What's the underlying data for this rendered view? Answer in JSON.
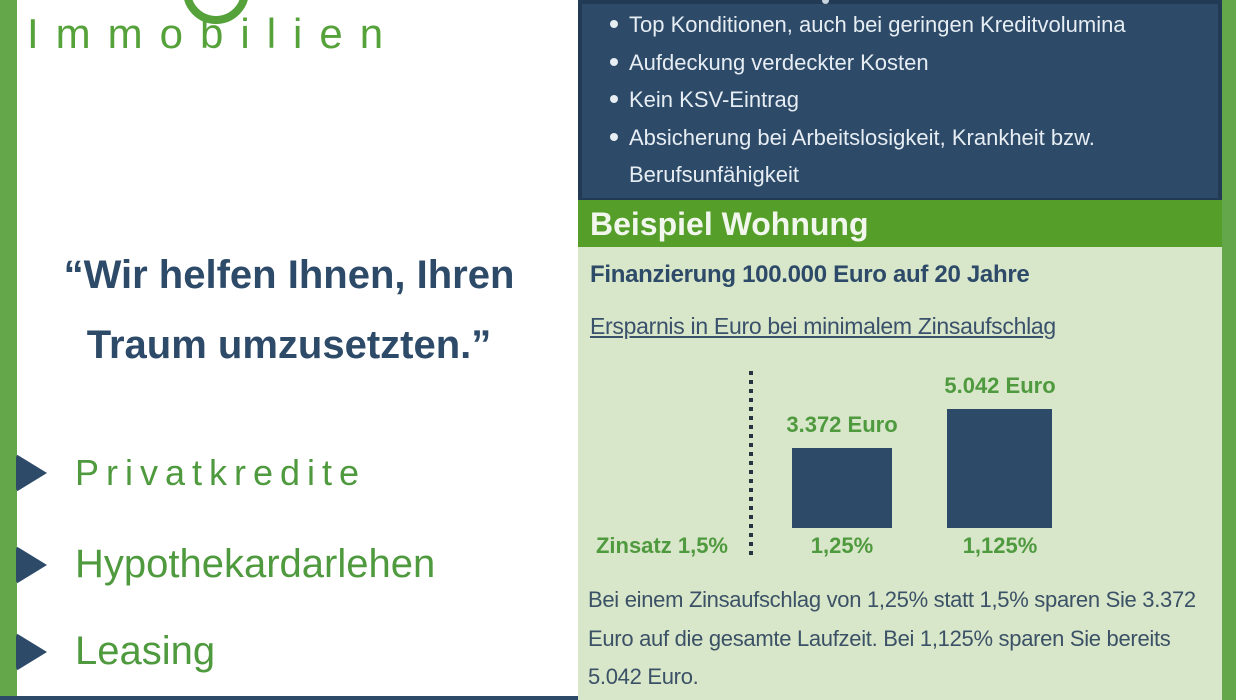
{
  "brand": {
    "name": "Immobilien"
  },
  "left_panel": {
    "quote_lines": [
      "“Wir helfen Ihnen, Ihren",
      "Traum umzusetzten.”"
    ],
    "services": [
      "Privatkredite",
      "Hypothekardarlehen",
      "Leasing"
    ]
  },
  "benefits_panel": {
    "items": [
      "Top Konditionen, auch bei geringen Kreditvolumina",
      "Aufdeckung verdeckter Kosten",
      "Kein KSV-Eintrag",
      "Absicherung bei Arbeitslosigkeit, Krankheit bzw. Berufsunfähigkeit"
    ]
  },
  "example_section": {
    "banner_title": "Beispiel Wohnung",
    "heading": "Finanzierung 100.000 Euro auf 20 Jahre",
    "subheading": "Ersparnis in Euro bei minimalem Zinsaufschlag",
    "note_lines": [
      "Bei einem Zinsaufschlag von 1,25% statt 1,5% sparen Sie 3.372",
      "Euro auf die gesamte Laufzeit. Bei 1,125% sparen Sie bereits",
      "5.042 Euro."
    ]
  },
  "chart_data": {
    "type": "bar",
    "title": "Ersparnis in Euro bei minimalem Zinsaufschlag",
    "baseline_label": "Zinsatz 1,5%",
    "categories": [
      "1,25%",
      "1,125%"
    ],
    "values": [
      3372,
      5042
    ],
    "value_labels": [
      "3.372 Euro",
      "5.042 Euro"
    ],
    "unit": "Euro",
    "bar_color": "#2d4a68",
    "label_color": "#4f9a3e",
    "background": "#d8e6ca",
    "grid": false,
    "legend_position": "none"
  },
  "colors": {
    "accent_green": "#55a13a",
    "edge_green": "#63a74a",
    "banner_green": "#559e2a",
    "navy": "#2d4a68",
    "light_green_bg": "#d8e6ca",
    "bullet_text": "#e6edf3",
    "body_text": "#3b5166",
    "chart_label_green": "#4f9a3e"
  }
}
